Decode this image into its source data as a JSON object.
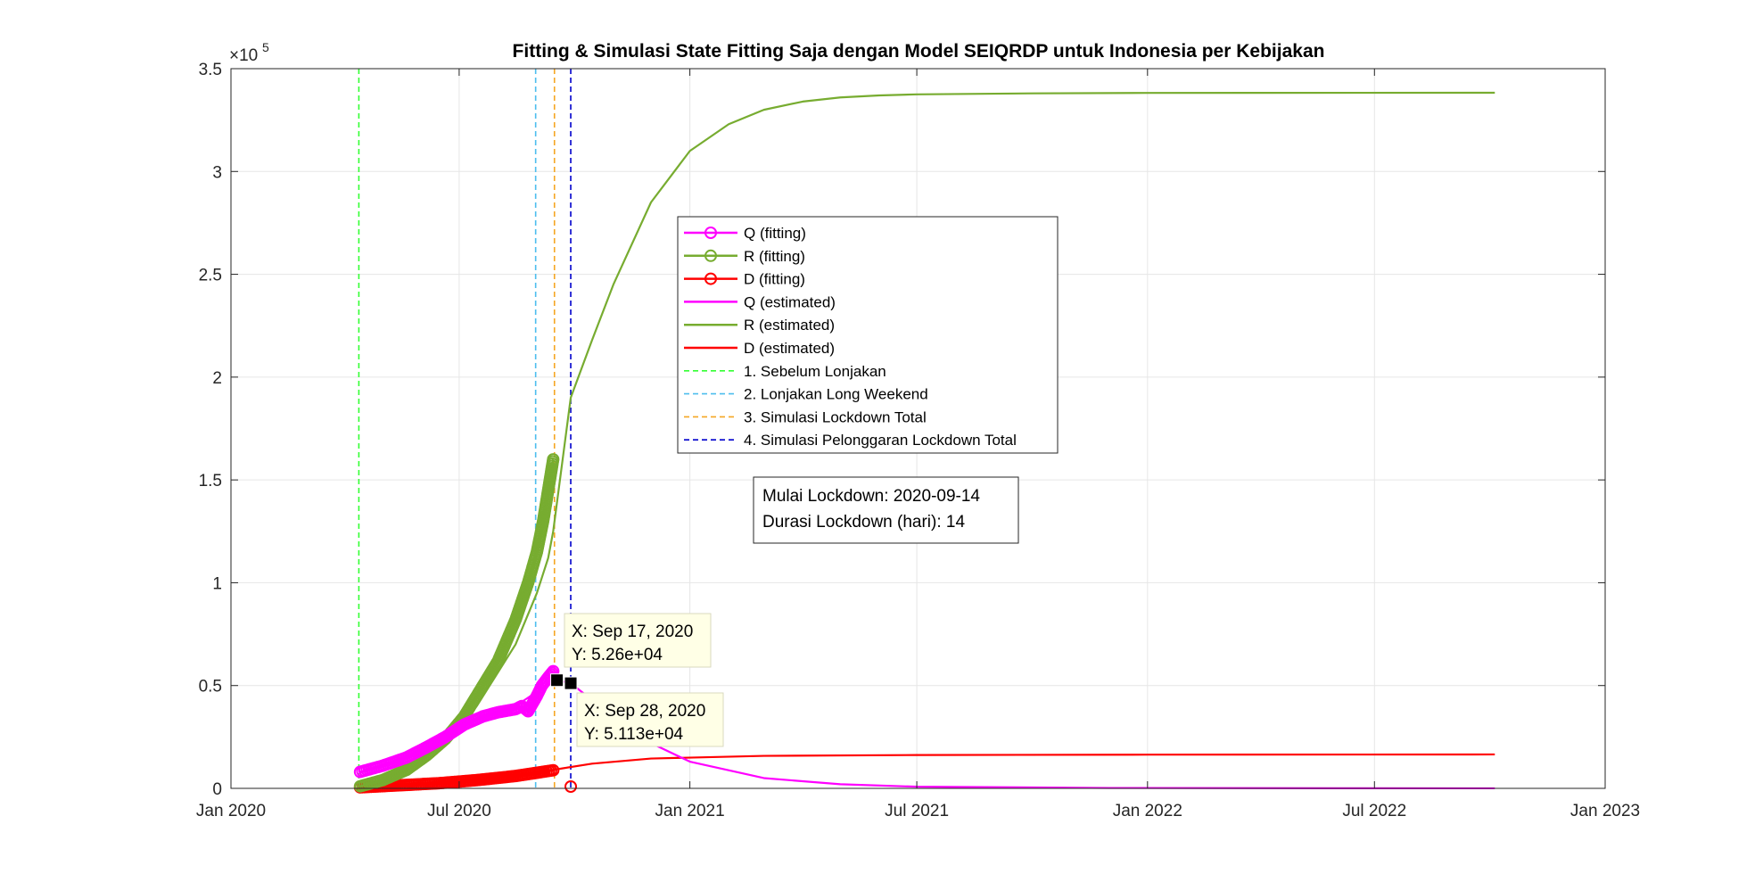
{
  "chart_data": {
    "type": "line",
    "title": "Fitting & Simulasi State Fitting Saja dengan Model SEIQRDP untuk Indonesia per Kebijakan",
    "xlabel": "",
    "ylabel": "",
    "exponent_label": "×10",
    "exponent_power": "5",
    "xlim": [
      "2020-01-01",
      "2023-01-01"
    ],
    "ylim": [
      0,
      350000
    ],
    "grid": true,
    "x_ticks": [
      {
        "date": "2020-01-01",
        "label": "Jan 2020"
      },
      {
        "date": "2020-07-01",
        "label": "Jul 2020"
      },
      {
        "date": "2021-01-01",
        "label": "Jan 2021"
      },
      {
        "date": "2021-07-01",
        "label": "Jul 2021"
      },
      {
        "date": "2022-01-01",
        "label": "Jan 2022"
      },
      {
        "date": "2022-07-01",
        "label": "Jul 2022"
      },
      {
        "date": "2023-01-01",
        "label": "Jan 2023"
      }
    ],
    "y_ticks": [
      {
        "value": 0,
        "label": "0"
      },
      {
        "value": 50000,
        "label": "0.5"
      },
      {
        "value": 100000,
        "label": "1"
      },
      {
        "value": 150000,
        "label": "1.5"
      },
      {
        "value": 200000,
        "label": "2"
      },
      {
        "value": 250000,
        "label": "2.5"
      },
      {
        "value": 300000,
        "label": "3"
      },
      {
        "value": 350000,
        "label": "3.5"
      }
    ],
    "series": [
      {
        "name": "Q (fitting)",
        "style": "circle-line",
        "color": "#ff00ff",
        "x": [
          "2020-04-13",
          "2020-05-01",
          "2020-05-20",
          "2020-06-05",
          "2020-06-20",
          "2020-07-05",
          "2020-07-20",
          "2020-08-01",
          "2020-08-15",
          "2020-08-20",
          "2020-08-25",
          "2020-09-01",
          "2020-09-05",
          "2020-09-10",
          "2020-09-14"
        ],
        "y": [
          8000,
          11000,
          15000,
          20000,
          25000,
          31000,
          35000,
          37000,
          38500,
          40000,
          37500,
          45000,
          50000,
          54000,
          57000
        ]
      },
      {
        "name": "R (fitting)",
        "style": "circle-line",
        "color": "#77ac30",
        "x": [
          "2020-04-13",
          "2020-05-01",
          "2020-05-20",
          "2020-06-05",
          "2020-06-20",
          "2020-07-05",
          "2020-07-20",
          "2020-08-01",
          "2020-08-15",
          "2020-08-25",
          "2020-09-01",
          "2020-09-06",
          "2020-09-10",
          "2020-09-14"
        ],
        "y": [
          1000,
          4000,
          9000,
          16000,
          24000,
          35000,
          50000,
          62000,
          82000,
          100000,
          115000,
          130000,
          145000,
          160000
        ]
      },
      {
        "name": "D (fitting)",
        "style": "circle-line",
        "color": "#ff0000",
        "x": [
          "2020-04-13",
          "2020-05-15",
          "2020-06-15",
          "2020-07-15",
          "2020-08-15",
          "2020-09-14",
          "2020-09-28"
        ],
        "y": [
          500,
          1500,
          2500,
          4000,
          6000,
          8800,
          0
        ]
      },
      {
        "name": "Q (estimated)",
        "style": "line",
        "color": "#ff00ff",
        "x": [
          "2020-04-13",
          "2020-05-15",
          "2020-06-15",
          "2020-07-15",
          "2020-08-15",
          "2020-09-01",
          "2020-09-17",
          "2020-09-28",
          "2020-10-15",
          "2020-11-01",
          "2020-12-01",
          "2021-01-01",
          "2021-03-01",
          "2021-05-01",
          "2021-07-01",
          "2021-12-01",
          "2022-06-01",
          "2022-10-05"
        ],
        "y": [
          7500,
          13000,
          22000,
          34000,
          40000,
          47000,
          52600,
          51130,
          43000,
          35000,
          22000,
          13000,
          5000,
          2000,
          800,
          200,
          50,
          20
        ]
      },
      {
        "name": "R (estimated)",
        "style": "line",
        "color": "#77ac30",
        "x": [
          "2020-04-13",
          "2020-05-15",
          "2020-06-15",
          "2020-07-15",
          "2020-08-15",
          "2020-09-01",
          "2020-09-10",
          "2020-09-14",
          "2020-09-28",
          "2020-10-15",
          "2020-11-01",
          "2020-12-01",
          "2021-01-01",
          "2021-02-01",
          "2021-03-01",
          "2021-04-01",
          "2021-05-01",
          "2021-06-01",
          "2021-07-01",
          "2021-10-01",
          "2022-01-01",
          "2022-10-05"
        ],
        "y": [
          500,
          8000,
          20000,
          40000,
          70000,
          95000,
          112000,
          125000,
          190000,
          218000,
          245000,
          285000,
          310000,
          323000,
          330000,
          334000,
          336000,
          337000,
          337500,
          338000,
          338200,
          338300
        ]
      },
      {
        "name": "D (estimated)",
        "style": "line",
        "color": "#ff0000",
        "x": [
          "2020-04-13",
          "2020-06-01",
          "2020-08-01",
          "2020-09-14",
          "2020-10-15",
          "2020-12-01",
          "2021-03-01",
          "2021-07-01",
          "2022-01-01",
          "2022-10-05"
        ],
        "y": [
          400,
          2000,
          5000,
          9000,
          12000,
          14500,
          15800,
          16200,
          16400,
          16500
        ]
      }
    ],
    "vlines": [
      {
        "name": "1. Sebelum Lonjakan",
        "date": "2020-04-12",
        "color": "#33ff33"
      },
      {
        "name": "2. Lonjakan Long Weekend",
        "date": "2020-08-31",
        "color": "#4dbeee"
      },
      {
        "name": "3. Simulasi Lockdown Total",
        "date": "2020-09-15",
        "color": "#f5a623"
      },
      {
        "name": "4. Simulasi Pelonggaran Lockdown Total",
        "date": "2020-09-28",
        "color": "#0000cc"
      }
    ],
    "annotation": {
      "line1": "Mulai Lockdown: 2020-09-14",
      "line2": "Durasi Lockdown (hari): 14"
    },
    "datatips": [
      {
        "x_label": "X: Sep 17, 2020",
        "y_label": "Y: 5.26e+04",
        "date": "2020-09-17",
        "value": 52600
      },
      {
        "x_label": "X: Sep 28, 2020",
        "y_label": "Y: 5.113e+04",
        "date": "2020-09-28",
        "value": 51130
      }
    ],
    "legend_placement": "center-top"
  }
}
